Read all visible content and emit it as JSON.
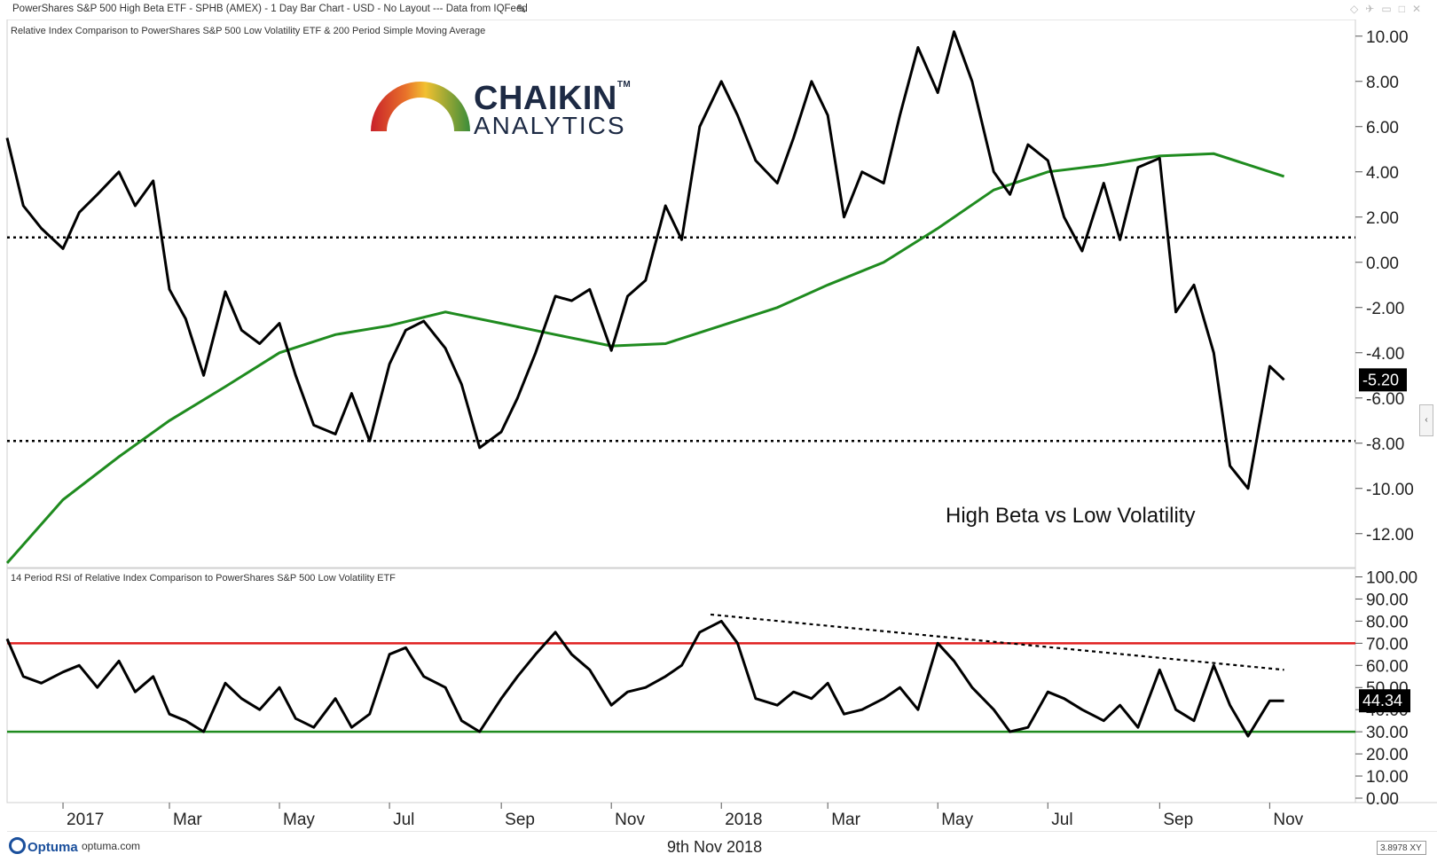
{
  "header": {
    "title": "PowerShares S&P 500 High Beta ETF - SPHB (AMEX) - 1 Day Bar Chart - USD - No Layout --- Data from IQFeed",
    "edit_icon": "pencil-icon",
    "window_icons": [
      "diamond-icon",
      "pin-icon",
      "restore-icon",
      "maximize-icon",
      "close-icon"
    ]
  },
  "logo": {
    "line1": "CHAIKIN",
    "tm": "TM",
    "line2": "ANALYTICS"
  },
  "footer": {
    "brand": "Optuma",
    "url": "optuma.com",
    "date": "9th Nov 2018",
    "zoom": "3.8978 XY"
  },
  "side_handle": "‹",
  "chart_data": [
    {
      "type": "line",
      "title": "Relative Index Comparison to PowerShares S&P 500 Low Volatility ETF & 200 Period Simple Moving Average",
      "annotation": "High Beta vs Low Volatility",
      "xlabel": "",
      "ylabel": "",
      "ylim": [
        -13.5,
        10.5
      ],
      "y_ticks": [
        "10.00",
        "8.00",
        "6.00",
        "4.00",
        "2.00",
        "0.00",
        "-2.00",
        "-4.00",
        "-6.00",
        "-8.00",
        "-10.00",
        "-12.00"
      ],
      "x_tick_labels": [
        "2017",
        "Mar",
        "May",
        "Jul",
        "Sep",
        "Nov",
        "2018",
        "Mar",
        "May",
        "Jul",
        "Sep",
        "Nov"
      ],
      "last_value_label": "-5.20",
      "colors": {
        "price": "#000000",
        "sma": "#1f8b1f",
        "reference": "#000000"
      },
      "reference_lines": [
        1.1,
        -7.9
      ],
      "series": [
        {
          "x": [
            "2016-12-01",
            "2016-12-10",
            "2016-12-20",
            "2017-01-01",
            "2017-01-10",
            "2017-01-20",
            "2017-02-01",
            "2017-02-10",
            "2017-02-20",
            "2017-03-01",
            "2017-03-10",
            "2017-03-20",
            "2017-04-01",
            "2017-04-10",
            "2017-04-20",
            "2017-05-01",
            "2017-05-10",
            "2017-05-20",
            "2017-06-01",
            "2017-06-10",
            "2017-06-20",
            "2017-07-01",
            "2017-07-10",
            "2017-07-20",
            "2017-08-01",
            "2017-08-10",
            "2017-08-20",
            "2017-09-01",
            "2017-09-10",
            "2017-09-20",
            "2017-10-01",
            "2017-10-10",
            "2017-10-20",
            "2017-11-01",
            "2017-11-10",
            "2017-11-20",
            "2017-12-01",
            "2017-12-10",
            "2017-12-20",
            "2018-01-01",
            "2018-01-10",
            "2018-01-20",
            "2018-02-01",
            "2018-02-10",
            "2018-02-20",
            "2018-03-01",
            "2018-03-10",
            "2018-03-20",
            "2018-04-01",
            "2018-04-10",
            "2018-04-20",
            "2018-05-01",
            "2018-05-10",
            "2018-05-20",
            "2018-06-01",
            "2018-06-10",
            "2018-06-20",
            "2018-07-01",
            "2018-07-10",
            "2018-07-20",
            "2018-08-01",
            "2018-08-10",
            "2018-08-20",
            "2018-09-01",
            "2018-09-10",
            "2018-09-20",
            "2018-10-01",
            "2018-10-10",
            "2018-10-20",
            "2018-11-01",
            "2018-11-09"
          ],
          "values": [
            5.5,
            2.5,
            1.5,
            0.6,
            2.2,
            3.0,
            4.0,
            2.5,
            3.6,
            -1.2,
            -2.5,
            -5.0,
            -1.3,
            -3.0,
            -3.6,
            -2.7,
            -5.0,
            -7.2,
            -7.6,
            -5.8,
            -7.9,
            -4.5,
            -3.0,
            -2.6,
            -3.8,
            -5.4,
            -8.2,
            -7.5,
            -6.0,
            -4.0,
            -1.5,
            -1.7,
            -1.2,
            -3.9,
            -1.5,
            -0.8,
            2.5,
            1.0,
            6.0,
            8.0,
            6.5,
            4.5,
            3.5,
            5.5,
            8.0,
            6.5,
            2.0,
            4.0,
            3.5,
            6.5,
            9.5,
            7.5,
            10.2,
            8.0,
            4.0,
            3.0,
            5.2,
            4.5,
            2.0,
            0.5,
            3.5,
            1.0,
            4.2,
            4.6,
            -2.2,
            -1.0,
            -4.0,
            -9.0,
            -10.0,
            -4.6,
            -5.2
          ],
          "name": ""
        },
        {
          "x": [
            "2016-12-01",
            "2017-01-01",
            "2017-02-01",
            "2017-03-01",
            "2017-04-01",
            "2017-05-01",
            "2017-06-01",
            "2017-07-01",
            "2017-08-01",
            "2017-09-01",
            "2017-10-01",
            "2017-11-01",
            "2017-12-01",
            "2018-01-01",
            "2018-02-01",
            "2018-03-01",
            "2018-04-01",
            "2018-05-01",
            "2018-06-01",
            "2018-07-01",
            "2018-08-01",
            "2018-09-01",
            "2018-10-01",
            "2018-11-09"
          ],
          "values": [
            -13.3,
            -10.5,
            -8.6,
            -7.0,
            -5.5,
            -4.0,
            -3.2,
            -2.8,
            -2.2,
            -2.7,
            -3.2,
            -3.7,
            -3.6,
            -2.8,
            -2.0,
            -1.0,
            0.0,
            1.5,
            3.2,
            4.0,
            4.3,
            4.7,
            4.8,
            3.8
          ],
          "name": ""
        }
      ]
    },
    {
      "type": "line",
      "title": "14 Period RSI of Relative Index Comparison to PowerShares S&P 500 Low Volatility ETF",
      "xlabel": "",
      "ylabel": "",
      "ylim": [
        0,
        101
      ],
      "y_ticks": [
        "100.00",
        "90.00",
        "80.00",
        "70.00",
        "60.00",
        "50.00",
        "40.00",
        "30.00",
        "20.00",
        "10.00",
        "0.00"
      ],
      "last_value_label": "44.34",
      "colors": {
        "rsi": "#000000",
        "overbought": "#e02020",
        "oversold": "#1f8b1f",
        "trendline": "#000000"
      },
      "reference_lines": [
        70,
        30
      ],
      "trendline": {
        "x": [
          "2017-12-26",
          "2018-11-09"
        ],
        "values": [
          83,
          58
        ]
      },
      "series": [
        {
          "x": [
            "2016-12-01",
            "2016-12-10",
            "2016-12-20",
            "2017-01-01",
            "2017-01-10",
            "2017-01-20",
            "2017-02-01",
            "2017-02-10",
            "2017-02-20",
            "2017-03-01",
            "2017-03-10",
            "2017-03-20",
            "2017-04-01",
            "2017-04-10",
            "2017-04-20",
            "2017-05-01",
            "2017-05-10",
            "2017-05-20",
            "2017-06-01",
            "2017-06-10",
            "2017-06-20",
            "2017-07-01",
            "2017-07-10",
            "2017-07-20",
            "2017-08-01",
            "2017-08-10",
            "2017-08-20",
            "2017-09-01",
            "2017-09-10",
            "2017-09-20",
            "2017-10-01",
            "2017-10-10",
            "2017-10-20",
            "2017-11-01",
            "2017-11-10",
            "2017-11-20",
            "2017-12-01",
            "2017-12-10",
            "2017-12-20",
            "2018-01-01",
            "2018-01-10",
            "2018-01-20",
            "2018-02-01",
            "2018-02-10",
            "2018-02-20",
            "2018-03-01",
            "2018-03-10",
            "2018-03-20",
            "2018-04-01",
            "2018-04-10",
            "2018-04-20",
            "2018-05-01",
            "2018-05-10",
            "2018-05-20",
            "2018-06-01",
            "2018-06-10",
            "2018-06-20",
            "2018-07-01",
            "2018-07-10",
            "2018-07-20",
            "2018-08-01",
            "2018-08-10",
            "2018-08-20",
            "2018-09-01",
            "2018-09-10",
            "2018-09-20",
            "2018-10-01",
            "2018-10-10",
            "2018-10-20",
            "2018-11-01",
            "2018-11-09"
          ],
          "values": [
            72,
            55,
            52,
            57,
            60,
            50,
            62,
            48,
            55,
            38,
            35,
            30,
            52,
            45,
            40,
            50,
            36,
            32,
            45,
            32,
            38,
            65,
            68,
            55,
            50,
            35,
            30,
            45,
            55,
            65,
            75,
            65,
            58,
            42,
            48,
            50,
            55,
            60,
            75,
            80,
            70,
            45,
            42,
            48,
            45,
            52,
            38,
            40,
            45,
            50,
            40,
            70,
            62,
            50,
            40,
            30,
            32,
            48,
            45,
            40,
            35,
            42,
            32,
            58,
            40,
            35,
            60,
            42,
            28,
            44,
            44
          ],
          "name": ""
        }
      ]
    }
  ]
}
